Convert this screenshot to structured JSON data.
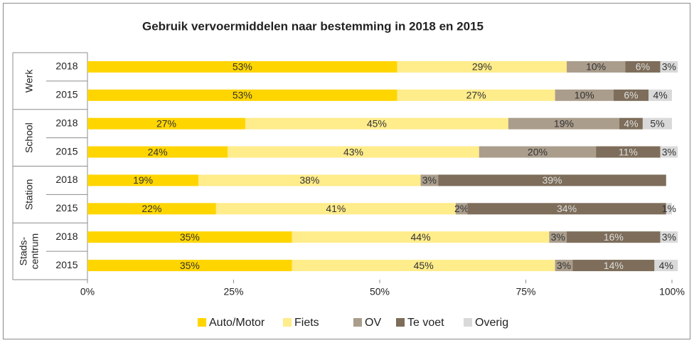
{
  "chart_data": {
    "type": "stacked-bar-horizontal",
    "title": "Gebruik vervoermiddelen naar bestemming in 2018 en 2015",
    "groups": [
      [
        "Werk"
      ],
      [
        "School"
      ],
      [
        "Station"
      ],
      [
        "Stads-",
        "centrum"
      ]
    ],
    "categories": [
      "2018",
      "2015",
      "2018",
      "2015",
      "2018",
      "2015",
      "2018",
      "2015"
    ],
    "series": [
      {
        "name": "Auto/Motor",
        "color": "#ffd500",
        "label_color": "#333333",
        "values": [
          53,
          53,
          27,
          24,
          19,
          22,
          35,
          35
        ],
        "value_labels": [
          "53%",
          "53%",
          "27%",
          "24%",
          "19%",
          "22%",
          "35%",
          "35%"
        ]
      },
      {
        "name": "Fiets",
        "color": "#ffec8b",
        "label_color": "#333333",
        "values": [
          29,
          27,
          45,
          43,
          38,
          41,
          44,
          45
        ],
        "value_labels": [
          "29%",
          "27%",
          "45%",
          "43%",
          "38%",
          "41%",
          "44%",
          "45%"
        ]
      },
      {
        "name": "OV",
        "color": "#aa9d8c",
        "label_color": "#333333",
        "values": [
          10,
          10,
          19,
          20,
          3,
          2,
          3,
          3
        ],
        "value_labels": [
          "10%",
          "10%",
          "19%",
          "20%",
          "3%",
          "2%",
          "3%",
          "3%"
        ]
      },
      {
        "name": "Te voet",
        "color": "#7d6d5a",
        "label_color": "#dddddd",
        "values": [
          6,
          6,
          4,
          11,
          39,
          34,
          16,
          14
        ],
        "value_labels": [
          "6%",
          "6%",
          "4%",
          "11%",
          "39%",
          "34%",
          "16%",
          "14%"
        ]
      },
      {
        "name": "Overig",
        "color": "#d9d9d9",
        "label_color": "#333333",
        "values": [
          3,
          4,
          5,
          3,
          null,
          1,
          3,
          4
        ],
        "value_labels": [
          "3%",
          "4%",
          "5%",
          "3%",
          null,
          "1%",
          "3%",
          "4%"
        ]
      }
    ],
    "xlim": [
      0,
      100
    ],
    "xticks": [
      {
        "value": 0,
        "label": "0%"
      },
      {
        "value": 25,
        "label": "25%"
      },
      {
        "value": 50,
        "label": "50%"
      },
      {
        "value": 75,
        "label": "75%"
      },
      {
        "value": 100,
        "label": "100%"
      }
    ],
    "legend": "bottom"
  }
}
